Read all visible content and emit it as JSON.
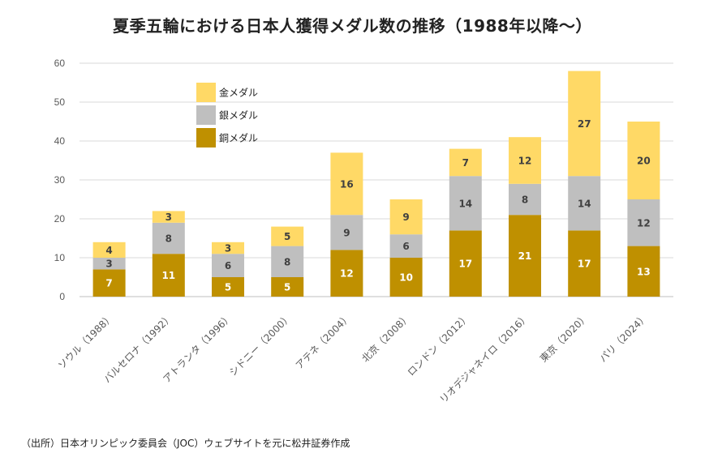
{
  "title": "夏季五輪における日本人獲得メダル数の推移（1988年以降～）",
  "source": "（出所）日本オリンピック委員会（JOC）ウェブサイトを元に松井証券作成",
  "chart_data": {
    "type": "bar",
    "stacked": true,
    "categories": [
      "ソウル（1988）",
      "バルセロナ（1992）",
      "アトランタ（1996）",
      "シドニー（2000）",
      "アテネ（2004）",
      "北京（2008）",
      "ロンドン（2012）",
      "リオデジャネイロ（2016）",
      "東京（2020）",
      "パリ（2024）"
    ],
    "series": [
      {
        "name": "銅メダル",
        "color": "#BF9000",
        "label_color": "#ffffff",
        "values": [
          7,
          11,
          5,
          5,
          12,
          10,
          17,
          21,
          17,
          13
        ]
      },
      {
        "name": "銀メダル",
        "color": "#BFBFBF",
        "label_color": "#404040",
        "values": [
          3,
          8,
          6,
          8,
          9,
          6,
          14,
          8,
          14,
          12
        ]
      },
      {
        "name": "金メダル",
        "color": "#FFD966",
        "label_color": "#404040",
        "values": [
          4,
          3,
          3,
          5,
          16,
          9,
          7,
          12,
          27,
          20
        ]
      }
    ],
    "legend_order": [
      "金メダル",
      "銀メダル",
      "銅メダル"
    ],
    "legend_position": "top-left",
    "ylim": [
      0,
      60
    ],
    "yticks": [
      0,
      10,
      20,
      30,
      40,
      50,
      60
    ],
    "grid": true,
    "xlabel": "",
    "ylabel": ""
  }
}
